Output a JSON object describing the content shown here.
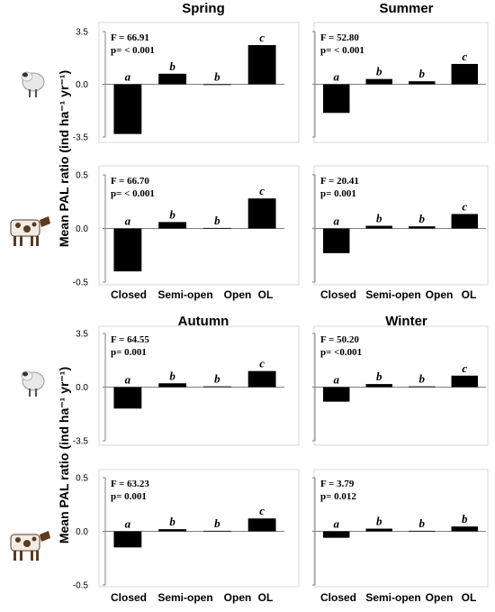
{
  "chart_data": {
    "type": "bar",
    "ylabel": "Mean PAL ratio (ind ha⁻¹ yr⁻¹)",
    "categories": [
      "Closed",
      "Semi-open",
      "Open",
      "OL"
    ],
    "animals": [
      {
        "name": "sheep",
        "icon": "sheep-icon"
      },
      {
        "name": "cattle",
        "icon": "cow-icon"
      }
    ],
    "panels": [
      {
        "season": "Spring",
        "animal": "sheep",
        "ylim": [
          -3.5,
          3.5
        ],
        "yticks": [
          "3.5",
          "0.0",
          "-3.5"
        ],
        "F": "F = 66.91",
        "p": "p= < 0.001",
        "values": [
          -3.3,
          0.7,
          0.0,
          2.6
        ],
        "letters": [
          "a",
          "b",
          "b",
          "c"
        ]
      },
      {
        "season": "Summer",
        "animal": "sheep",
        "ylim": [
          -3.5,
          3.5
        ],
        "yticks": [],
        "F": "F = 52.80",
        "p": "p= < 0.001",
        "values": [
          -1.9,
          0.35,
          0.2,
          1.35
        ],
        "letters": [
          "a",
          "b",
          "b",
          "c"
        ]
      },
      {
        "season": "",
        "animal": "cattle",
        "ylim": [
          -0.5,
          0.5
        ],
        "yticks": [
          "0.5",
          "0.0",
          "-0.5"
        ],
        "F": "F = 66.70",
        "p": "p= < 0.001",
        "values": [
          -0.4,
          0.06,
          0.005,
          0.28
        ],
        "letters": [
          "a",
          "b",
          "b",
          "c"
        ]
      },
      {
        "season": "",
        "animal": "cattle",
        "ylim": [
          -0.5,
          0.5
        ],
        "yticks": [],
        "F": "F = 20.41",
        "p": "p= 0.001",
        "values": [
          -0.23,
          0.025,
          0.02,
          0.135
        ],
        "letters": [
          "a",
          "b",
          "b",
          "c"
        ]
      },
      {
        "season": "Autumn",
        "animal": "sheep",
        "ylim": [
          -3.5,
          3.5
        ],
        "yticks": [
          "3.5",
          "0.0",
          "-3.5"
        ],
        "F": "F = 64.55",
        "p": "p= 0.001",
        "values": [
          -1.4,
          0.25,
          0.05,
          1.05
        ],
        "letters": [
          "a",
          "b",
          "b",
          "c"
        ]
      },
      {
        "season": "Winter",
        "animal": "sheep",
        "ylim": [
          -3.5,
          3.5
        ],
        "yticks": [],
        "F": "F = 50.20",
        "p": "p= <0.001",
        "values": [
          -0.95,
          0.2,
          0.05,
          0.75
        ],
        "letters": [
          "a",
          "b",
          "b",
          "c"
        ]
      },
      {
        "season": "",
        "animal": "cattle",
        "ylim": [
          -0.5,
          0.5
        ],
        "yticks": [
          "0.5",
          "0.0",
          "-0.5"
        ],
        "F": "F = 63.23",
        "p": "p= 0.001",
        "values": [
          -0.15,
          0.02,
          0.005,
          0.12
        ],
        "letters": [
          "a",
          "b",
          "b",
          "c"
        ]
      },
      {
        "season": "",
        "animal": "cattle",
        "ylim": [
          -0.5,
          0.5
        ],
        "yticks": [],
        "F": "F = 3.79",
        "p": "p= 0.012",
        "values": [
          -0.06,
          0.025,
          0.005,
          0.045
        ],
        "letters": [
          "a",
          "b",
          "b",
          "b"
        ]
      }
    ]
  }
}
